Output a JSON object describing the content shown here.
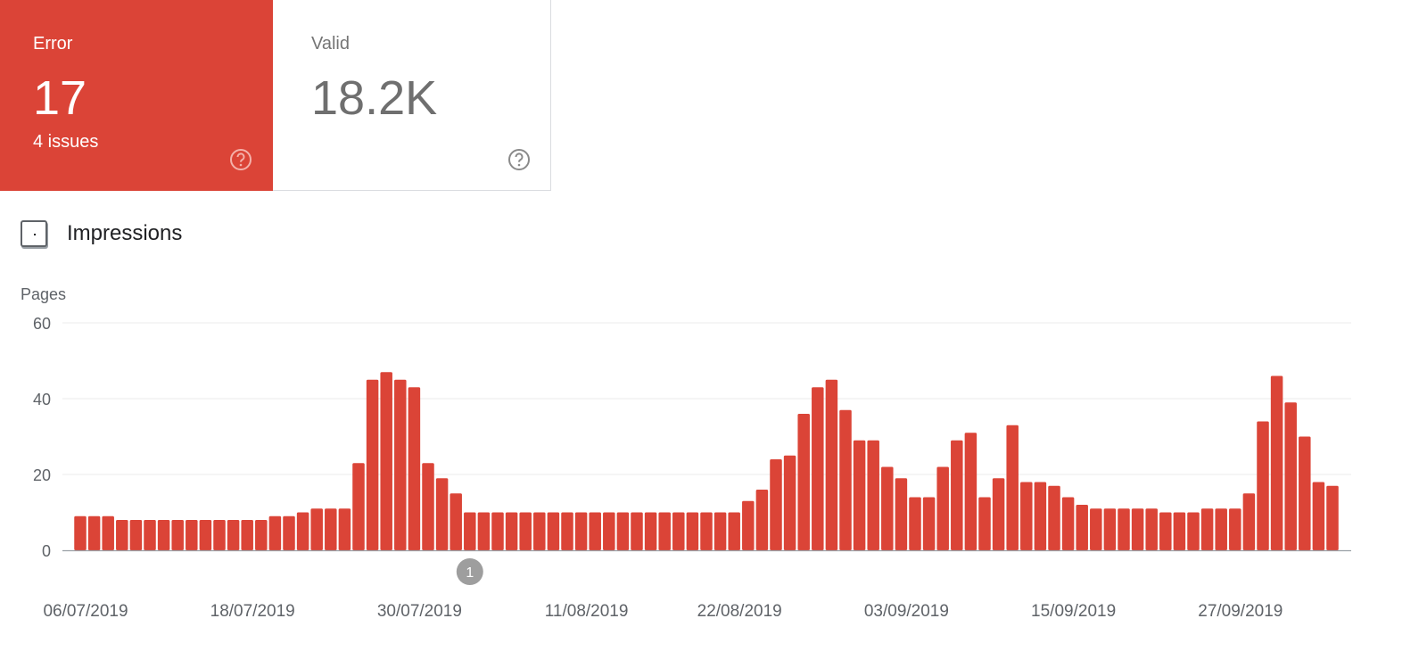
{
  "cards": {
    "error": {
      "label": "Error",
      "value": "17",
      "subtitle": "4 issues",
      "help_icon": "help-circle-icon"
    },
    "valid": {
      "label": "Valid",
      "value": "18.2K",
      "help_icon": "help-circle-icon"
    }
  },
  "impressions": {
    "label": "Impressions",
    "checked": false
  },
  "colors": {
    "error": "#db4437",
    "bar": "#db4437",
    "annotation": "#9e9e9e"
  },
  "chart_data": {
    "type": "bar",
    "ylabel": "Pages",
    "ylim": [
      0,
      60
    ],
    "yticks": [
      0,
      20,
      40,
      60
    ],
    "xtick_labels": [
      "06/07/2019",
      "18/07/2019",
      "30/07/2019",
      "11/08/2019",
      "22/08/2019",
      "03/09/2019",
      "15/09/2019",
      "27/09/2019"
    ],
    "xtick_indices": [
      0,
      12,
      24,
      36,
      47,
      59,
      71,
      83
    ],
    "values": [
      9,
      9,
      9,
      8,
      8,
      8,
      8,
      8,
      8,
      8,
      8,
      8,
      8,
      8,
      9,
      9,
      10,
      11,
      11,
      11,
      23,
      45,
      47,
      45,
      43,
      23,
      19,
      15,
      10,
      10,
      10,
      10,
      10,
      10,
      10,
      10,
      10,
      10,
      10,
      10,
      10,
      10,
      10,
      10,
      10,
      10,
      10,
      10,
      13,
      16,
      24,
      25,
      36,
      43,
      45,
      37,
      29,
      29,
      22,
      19,
      14,
      14,
      22,
      29,
      31,
      14,
      19,
      33,
      18,
      18,
      17,
      14,
      12,
      11,
      11,
      11,
      11,
      11,
      10,
      10,
      10,
      11,
      11,
      11,
      15,
      34,
      46,
      39,
      30,
      18,
      17
    ],
    "annotations": [
      {
        "label": "1",
        "index": 28
      }
    ]
  }
}
